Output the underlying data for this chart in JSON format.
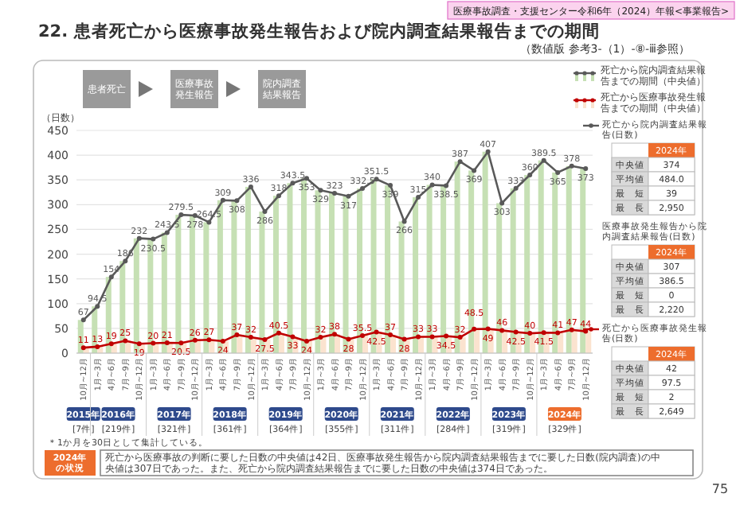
{
  "chart_data": {
    "type": "line",
    "title": "22. 患者死亡から医療事故発生報告および院内調査結果報告までの期間",
    "subtitle": "（数値版 参考3-（1）-⑧-ⅲ参照）",
    "ylabel": "（日数）",
    "categories": [
      "10月~12月",
      "1月~3月",
      "4月~6月",
      "7月~9月",
      "10月~12月",
      "1月~3月",
      "4月~6月",
      "7月~9月",
      "10月~12月",
      "1月~3月",
      "4月~6月",
      "7月~9月",
      "10月~12月",
      "1月~3月",
      "4月~6月",
      "7月~9月",
      "10月~12月",
      "1月~3月",
      "4月~6月",
      "7月~9月",
      "10月~12月",
      "1月~3月",
      "4月~6月",
      "7月~9月",
      "10月~12月",
      "1月~3月",
      "4月~6月",
      "7月~9月",
      "10月~12月",
      "1月~3月",
      "4月~6月",
      "7月~9月",
      "10月~12月",
      "1月~3月",
      "4月~6月",
      "7月~9月",
      "10月~12月"
    ],
    "series": [
      {
        "type": "bar",
        "color": "#c6e0b4",
        "values": [
          67,
          94.5,
          154,
          186,
          232,
          230.5,
          243.5,
          279.5,
          278,
          264.5,
          309,
          308,
          336,
          286,
          318,
          343.5,
          353,
          329,
          323,
          317,
          332.5,
          351.5,
          339,
          266,
          315,
          340,
          338.5,
          387,
          369,
          407,
          303,
          333,
          360,
          389.5,
          365,
          378,
          373
        ]
      },
      {
        "type": "bar",
        "color": "#fbe3cf",
        "values": [
          11,
          13,
          19,
          25,
          19,
          20,
          21,
          20.5,
          26,
          27,
          24,
          37,
          32,
          27.5,
          40.5,
          33,
          24,
          32,
          38,
          28,
          35.5,
          42.5,
          37,
          28,
          33,
          33,
          34.5,
          32,
          48.5,
          49,
          46,
          42.5,
          40,
          41.5,
          41,
          47,
          44
        ]
      },
      {
        "name": "死亡から院内調査結果報告までの期間（中央値）",
        "color": "#595959",
        "values": [
          67,
          94.5,
          154,
          186,
          232,
          230.5,
          243.5,
          279.5,
          278,
          264.5,
          309,
          308,
          336,
          286,
          318,
          343.5,
          353,
          329,
          323,
          317,
          332.5,
          351.5,
          339,
          266,
          315,
          340,
          338.5,
          387,
          369,
          407,
          303,
          333,
          360,
          389.5,
          365,
          378,
          373
        ],
        "value_labels": [
          "67",
          "94.5",
          "154",
          "186",
          "232",
          "230.5",
          "243.5",
          "279.5",
          "278",
          "264.5",
          "309",
          "308",
          "336",
          "286",
          "318",
          "343.5",
          "353",
          "329",
          "323",
          "317",
          "332.5",
          "351.5",
          "339",
          "266",
          "315",
          "340",
          "338.5",
          "387",
          "369",
          "407",
          "303",
          "333",
          "360",
          "389.5",
          "365",
          "378",
          "373"
        ]
      },
      {
        "name": "死亡から医療事故発生報告までの期間（中央値）",
        "color": "#c00000",
        "values": [
          11,
          13,
          19,
          25,
          19,
          20,
          21,
          20.5,
          26,
          27,
          24,
          37,
          32,
          27.5,
          40.5,
          33,
          24,
          32,
          38,
          28,
          35.5,
          42.5,
          37,
          28,
          33,
          33,
          34.5,
          32,
          48.5,
          49,
          46,
          42.5,
          40,
          41.5,
          41,
          47,
          44
        ],
        "value_labels": [
          "11",
          "13",
          "19",
          "25",
          "19",
          "20",
          "21",
          "20.5",
          "26",
          "27",
          "24",
          "37",
          "32",
          "27.5",
          "40.5",
          "33",
          "24",
          "32",
          "38",
          "28",
          "35.5",
          "42.5",
          "37",
          "28",
          "33",
          "33",
          "34.5",
          "32",
          "48.5",
          "49",
          "46",
          "42.5",
          "40",
          "41.5",
          "41",
          "47",
          "44"
        ]
      }
    ],
    "ylim": [
      0,
      450
    ],
    "yticks": [
      0,
      50,
      100,
      150,
      200,
      250,
      300,
      350,
      400,
      450
    ],
    "grid": "y",
    "legend": "top right",
    "marker": "circle",
    "annotations": [
      "医療事故調査・支援センター令和6年（2024）年報<事業報告>",
      "患者死亡",
      "医療事故発生報告",
      "院内調査結果報告",
      "2015年\n[7件]",
      "2016年\n[219件]",
      "2017年\n[321件]",
      "2018年\n[361件]",
      "2019年\n[364件]",
      "2020年\n[355件]",
      "2021年\n[311件]",
      "2022年\n[284件]",
      "2023年\n[319件]",
      "2024年\n[329件]",
      "死亡から院内調査結果報告(日数)",
      "2024年",
      "中央値",
      "374",
      "平均値",
      "484.0",
      "最　短",
      "39",
      "最　長",
      "2,950",
      "医療事故発生報告から院内調査結果報告(日数)",
      "2024年",
      "中央値",
      "307",
      "平均値",
      "386.5",
      "最　短",
      "0",
      "最　長",
      "2,220",
      "死亡から医療事故発生報告(日数)",
      "2024年",
      "中央値",
      "42",
      "平均値",
      "97.5",
      "最　短",
      "2",
      "最　長",
      "2,649",
      "＊1か月を30日として集計している。",
      "2024年の状況",
      "死亡から医療事故の判断に要した日数の中央値は42日、医療事故発生報告から院内調査結果報告までに要した日数(院内調査)の中央値は307日であった。また、死亡から院内調査結果報告までに要した日数の中央値は374日であった。",
      "75"
    ]
  }
}
